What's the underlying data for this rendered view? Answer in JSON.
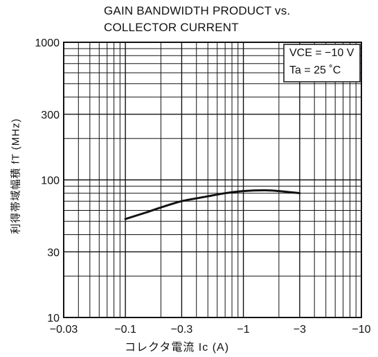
{
  "chart_data": {
    "type": "line",
    "title_line1": "GAIN BANDWIDTH PRODUCT vs.",
    "title_line2": "COLLECTOR CURRENT",
    "xlabel": "コレクタ電流  Ic  (A)",
    "ylabel": "利得帯域幅積  fT  (MHz)",
    "x_scale": "log",
    "y_scale": "log",
    "xlim": [
      -0.03,
      -10
    ],
    "ylim": [
      10,
      1000
    ],
    "x_ticks": [
      {
        "value": 0.03,
        "label": "−0.03"
      },
      {
        "value": 0.1,
        "label": "−0.1"
      },
      {
        "value": 0.3,
        "label": "−0.3"
      },
      {
        "value": 1,
        "label": "−1"
      },
      {
        "value": 3,
        "label": "−3"
      },
      {
        "value": 10,
        "label": "−10"
      }
    ],
    "y_ticks": [
      {
        "value": 10,
        "label": "10"
      },
      {
        "value": 30,
        "label": "30"
      },
      {
        "value": 100,
        "label": "100"
      },
      {
        "value": 300,
        "label": "300"
      },
      {
        "value": 1000,
        "label": "1000"
      }
    ],
    "grid": true,
    "conditions": [
      "VCE = −10 V",
      "Ta = 25 ˚C"
    ],
    "series": [
      {
        "x": [
          -0.1,
          -0.15,
          -0.2,
          -0.3,
          -0.5,
          -0.7,
          -1.0,
          -1.5,
          -2.0,
          -3.0
        ],
        "y": [
          52,
          58,
          63,
          70,
          76,
          80,
          83,
          84,
          83,
          80
        ]
      }
    ]
  }
}
